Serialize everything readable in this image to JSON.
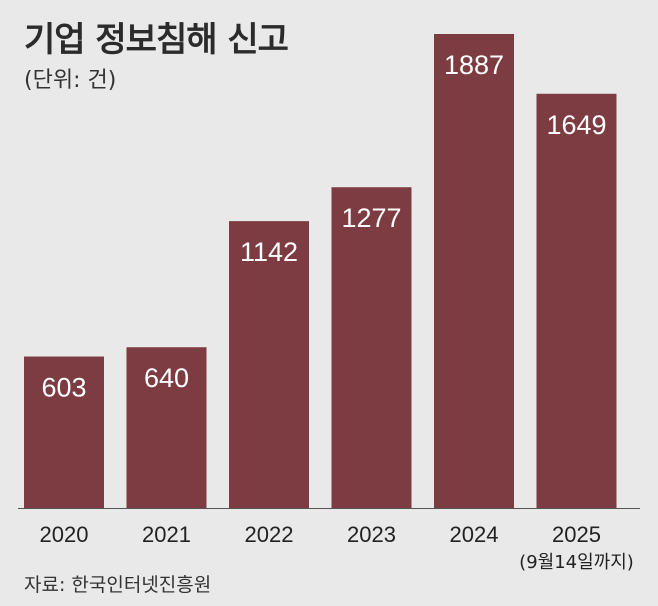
{
  "chart_data": {
    "type": "bar",
    "title": "기업 정보침해 신고",
    "subtitle": "(단위: 건)",
    "categories": [
      "2020",
      "2021",
      "2022",
      "2023",
      "2024",
      "2025"
    ],
    "category_notes": [
      "",
      "",
      "",
      "",
      "",
      "(9월14일까지)"
    ],
    "values": [
      603,
      640,
      1142,
      1277,
      1887,
      1649
    ],
    "data_labels": [
      "603",
      "640",
      "1142",
      "1277",
      "1887",
      "1649"
    ],
    "ylim": [
      0,
      1887
    ],
    "xlabel": "",
    "ylabel": "",
    "grid": false,
    "legend": "none",
    "source": "자료: 한국인터넷진흥원"
  },
  "colors": {
    "bar": "#7d3c41",
    "background": "#e9e9e9",
    "baseline": "#555555",
    "label_on_bar": "#ffffff",
    "axis_text": "#222222"
  }
}
